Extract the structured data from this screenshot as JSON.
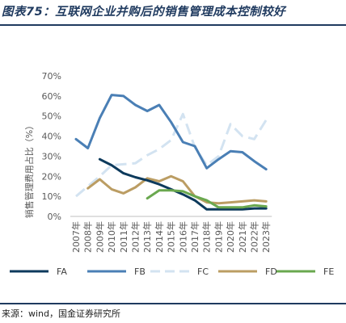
{
  "header": {
    "title": "图表75：互联网企业并购后的销售管理成本控制较好"
  },
  "footer": {
    "source": "来源：wind，国金证券研究所"
  },
  "chart_data": {
    "type": "line",
    "ylabel": "销售管理费用占比（%）",
    "categories": [
      "2007年",
      "2008年",
      "2009年",
      "2010年",
      "2011年",
      "2012年",
      "2013年",
      "2014年",
      "2015年",
      "2016年",
      "2017年",
      "2018年",
      "2019年",
      "2020年",
      "2021年",
      "2022年",
      "2023年"
    ],
    "ylim": [
      0,
      70
    ],
    "yticks": [
      "0%",
      "10%",
      "20%",
      "30%",
      "40%",
      "50%",
      "60%",
      "70%"
    ],
    "grid": false,
    "legend_position": "bottom",
    "series": [
      {
        "name": "FA",
        "color": "#0d3a5c",
        "dash": "solid",
        "values": [
          null,
          null,
          28.5,
          25.5,
          21.5,
          19.5,
          18,
          16,
          13.5,
          11,
          8,
          3.5,
          3.5,
          3.5,
          3.5,
          4,
          4
        ]
      },
      {
        "name": "FB",
        "color": "#4a7fb5",
        "dash": "solid",
        "values": [
          38.5,
          34,
          49,
          60.5,
          60,
          55.5,
          52.5,
          55.5,
          47,
          37,
          35,
          24,
          28.5,
          32.5,
          32,
          27.5,
          23.5
        ]
      },
      {
        "name": "FC",
        "color": "#d3e3f1",
        "dash": "dashed",
        "values": [
          10,
          15,
          20,
          25.5,
          26,
          26.5,
          30.5,
          33.5,
          38,
          51,
          34.5,
          25.5,
          30,
          46,
          40,
          38.5,
          48
        ]
      },
      {
        "name": "FD",
        "color": "#bb9d63",
        "dash": "solid",
        "values": [
          null,
          14,
          18.5,
          13.5,
          11.5,
          14.5,
          19,
          17.5,
          20,
          17.5,
          10,
          7,
          6.5,
          7,
          7.5,
          8,
          7.5
        ]
      },
      {
        "name": "FE",
        "color": "#6aa84f",
        "dash": "solid",
        "values": [
          null,
          null,
          null,
          null,
          null,
          null,
          9,
          13,
          13,
          12.5,
          10,
          8,
          4.5,
          4.5,
          4.5,
          5.5,
          5
        ]
      }
    ]
  }
}
